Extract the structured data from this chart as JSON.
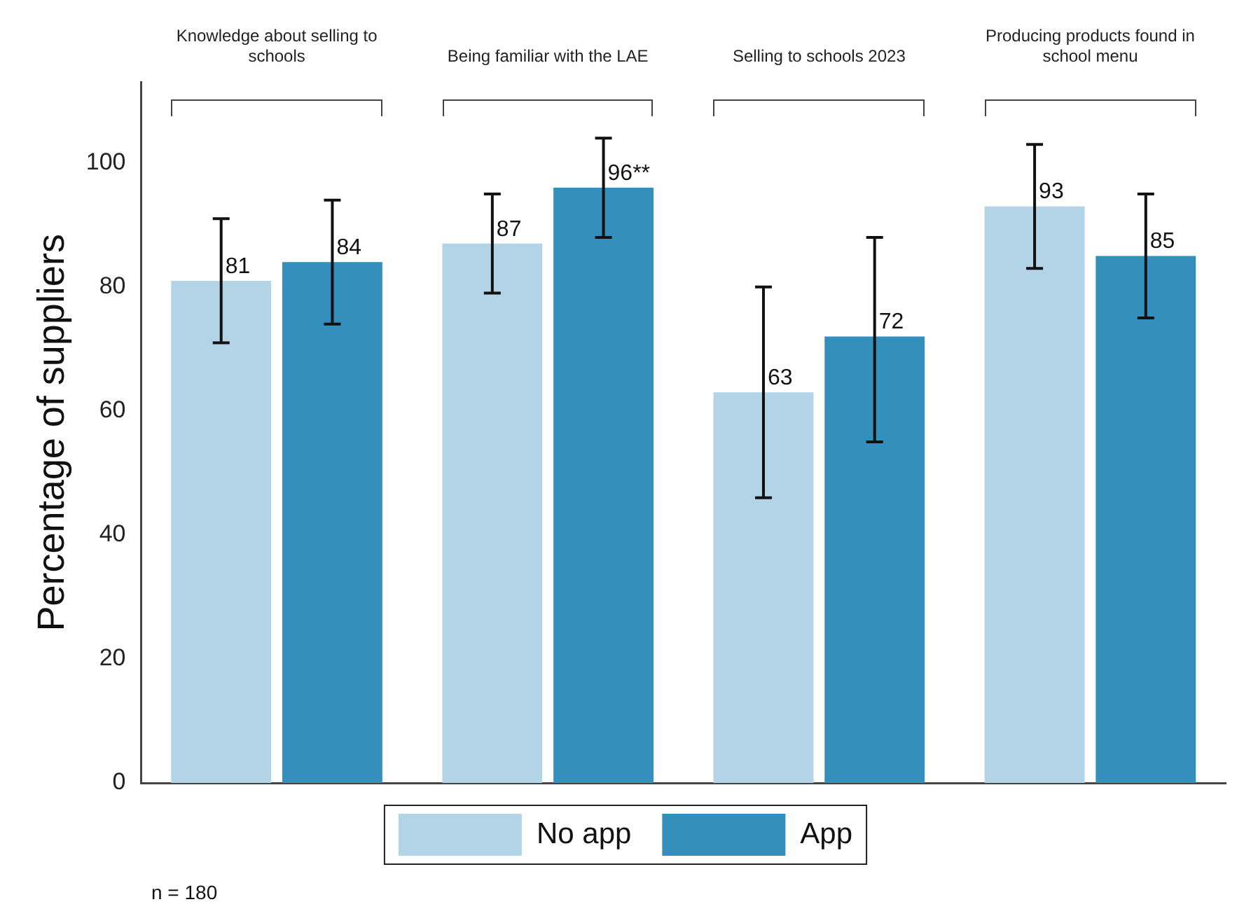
{
  "chart_data": {
    "type": "bar",
    "categories": [
      "Knowledge about selling to schools",
      "Being familiar with the LAE",
      "Selling to schools 2023",
      "Producing products found in school menu"
    ],
    "ylabel": "Percentage of suppliers",
    "ylim": [
      0,
      113
    ],
    "yticks": [
      0,
      20,
      40,
      60,
      80,
      100
    ],
    "grid": false,
    "legend": "bottom",
    "series": [
      {
        "name": "No app",
        "color": "#b3d4e6",
        "values": [
          81,
          87,
          63,
          93
        ],
        "errors": [
          [
            71,
            91
          ],
          [
            79,
            95
          ],
          [
            46,
            80
          ],
          [
            83,
            103
          ]
        ],
        "value_labels": [
          "81",
          "87",
          "63",
          "93"
        ]
      },
      {
        "name": "App",
        "color": "#358fbc",
        "values": [
          84,
          96,
          72,
          85
        ],
        "errors": [
          [
            74,
            94
          ],
          [
            88,
            104
          ],
          [
            55,
            88
          ],
          [
            75,
            95
          ]
        ],
        "value_labels": [
          "84",
          "96**",
          "72",
          "85"
        ]
      }
    ],
    "annotations": [
      "n = 180"
    ]
  }
}
